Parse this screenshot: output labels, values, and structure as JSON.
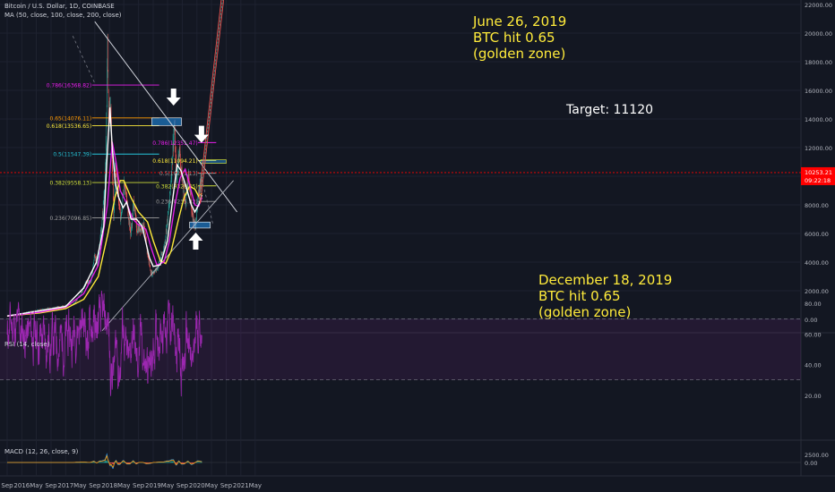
{
  "header": {
    "symbol": "Bitcoin / U.S. Dollar, 1D, COINBASE",
    "ma": "MA (50, close, 100, close, 200, close)",
    "rsi": "RSI (14, close)",
    "macd": "MACD (12, 26, close, 9)"
  },
  "colors": {
    "background": "#131722",
    "grid": "#1e2230",
    "candle_up": "#26a69a",
    "candle_down": "#ef5350",
    "ma50": "#ffffff",
    "ma100": "#e91eec",
    "ma200": "#ffeb3b",
    "rsi": "#9c27b0",
    "annotation_text": "#ffeb3b",
    "price_line": "#ff0000"
  },
  "chart_data": {
    "type": "line",
    "main": {
      "yticks": [
        0,
        2000,
        4000,
        6000,
        8000,
        10000,
        12000,
        14000,
        16000,
        18000,
        20000,
        22000
      ],
      "ytick_labels": [
        "0.00",
        "2000.00",
        "4000.00",
        "6000.00",
        "8000.00",
        "10000.00",
        "12000.00",
        "14000.00",
        "16000.00",
        "18000.00",
        "20000.00",
        "22000.00"
      ],
      "ylim": [
        -400,
        22000
      ],
      "current_price": "10253.21",
      "countdown": "09:22:18",
      "price_path": [
        [
          "2015-09-01",
          230
        ],
        [
          "2016-01-01",
          430
        ],
        [
          "2016-06-15",
          700
        ],
        [
          "2017-01-01",
          950
        ],
        [
          "2017-03-15",
          1100
        ],
        [
          "2017-05-01",
          1700
        ],
        [
          "2017-06-15",
          2500
        ],
        [
          "2017-08-01",
          2700
        ],
        [
          "2017-09-01",
          4600
        ],
        [
          "2017-09-20",
          3700
        ],
        [
          "2017-11-01",
          6800
        ],
        [
          "2017-12-01",
          10500
        ],
        [
          "2017-12-17",
          19500
        ],
        [
          "2017-12-25",
          14000
        ],
        [
          "2018-01-10",
          15000
        ],
        [
          "2018-02-06",
          7000
        ],
        [
          "2018-02-20",
          11000
        ],
        [
          "2018-04-05",
          6800
        ],
        [
          "2018-05-05",
          9700
        ],
        [
          "2018-06-28",
          5900
        ],
        [
          "2018-07-25",
          8300
        ],
        [
          "2018-08-15",
          6300
        ],
        [
          "2018-10-15",
          6500
        ],
        [
          "2018-11-20",
          4300
        ],
        [
          "2018-12-15",
          3200
        ],
        [
          "2019-02-01",
          3500
        ],
        [
          "2019-04-02",
          5000
        ],
        [
          "2019-05-15",
          8000
        ],
        [
          "2019-06-26",
          13500
        ],
        [
          "2019-07-15",
          9500
        ],
        [
          "2019-08-05",
          12000
        ],
        [
          "2019-09-01",
          9700
        ],
        [
          "2019-09-25",
          8100
        ],
        [
          "2019-10-26",
          10000
        ],
        [
          "2019-11-25",
          7000
        ],
        [
          "2019-12-18",
          6600
        ],
        [
          "2020-01-15",
          8800
        ],
        [
          "2020-02-12",
          10300
        ]
      ],
      "ma50": [
        [
          "2015-09-01",
          240
        ],
        [
          "2016-06-01",
          600
        ],
        [
          "2017-01-01",
          900
        ],
        [
          "2017-06-01",
          2200
        ],
        [
          "2017-09-15",
          4000
        ],
        [
          "2017-11-15",
          6500
        ],
        [
          "2017-12-10",
          11000
        ],
        [
          "2018-01-05",
          14800
        ],
        [
          "2018-01-25",
          12000
        ],
        [
          "2018-02-20",
          9500
        ],
        [
          "2018-03-20",
          8500
        ],
        [
          "2018-04-25",
          7800
        ],
        [
          "2018-05-25",
          8200
        ],
        [
          "2018-07-01",
          7000
        ],
        [
          "2018-08-15",
          7000
        ],
        [
          "2018-10-01",
          6500
        ],
        [
          "2018-12-01",
          4300
        ],
        [
          "2019-01-01",
          3700
        ],
        [
          "2019-03-01",
          3800
        ],
        [
          "2019-05-01",
          5500
        ],
        [
          "2019-06-15",
          8500
        ],
        [
          "2019-07-20",
          10800
        ],
        [
          "2019-08-20",
          10400
        ],
        [
          "2019-10-01",
          9300
        ],
        [
          "2019-11-15",
          8000
        ],
        [
          "2019-12-15",
          7500
        ],
        [
          "2020-01-15",
          8000
        ],
        [
          "2020-02-12",
          8700
        ]
      ],
      "ma100": [
        [
          "2015-09-01",
          230
        ],
        [
          "2016-06-01",
          500
        ],
        [
          "2017-01-01",
          850
        ],
        [
          "2017-06-01",
          1800
        ],
        [
          "2017-10-01",
          3800
        ],
        [
          "2017-12-15",
          8000
        ],
        [
          "2018-01-25",
          12400
        ],
        [
          "2018-02-25",
          11000
        ],
        [
          "2018-04-01",
          9000
        ],
        [
          "2018-06-01",
          8000
        ],
        [
          "2018-07-15",
          7000
        ],
        [
          "2018-09-01",
          6600
        ],
        [
          "2018-11-01",
          6300
        ],
        [
          "2018-12-15",
          5000
        ],
        [
          "2019-02-01",
          3800
        ],
        [
          "2019-04-01",
          4000
        ],
        [
          "2019-05-15",
          5400
        ],
        [
          "2019-07-01",
          8000
        ],
        [
          "2019-08-15",
          9900
        ],
        [
          "2019-09-25",
          10500
        ],
        [
          "2019-11-01",
          9400
        ],
        [
          "2019-12-15",
          8000
        ],
        [
          "2020-01-15",
          7900
        ],
        [
          "2020-02-12",
          8500
        ]
      ],
      "ma200": [
        [
          "2015-09-01",
          230
        ],
        [
          "2016-06-01",
          450
        ],
        [
          "2017-01-01",
          750
        ],
        [
          "2017-06-01",
          1400
        ],
        [
          "2017-10-01",
          3000
        ],
        [
          "2017-12-20",
          6000
        ],
        [
          "2018-02-15",
          8500
        ],
        [
          "2018-04-01",
          9700
        ],
        [
          "2018-05-01",
          9700
        ],
        [
          "2018-07-01",
          8500
        ],
        [
          "2018-09-01",
          7500
        ],
        [
          "2018-11-15",
          6800
        ],
        [
          "2019-01-01",
          5500
        ],
        [
          "2019-03-01",
          4100
        ],
        [
          "2019-04-15",
          3900
        ],
        [
          "2019-06-01",
          4800
        ],
        [
          "2019-08-01",
          7000
        ],
        [
          "2019-09-15",
          8500
        ],
        [
          "2019-11-01",
          9300
        ],
        [
          "2019-12-15",
          9100
        ],
        [
          "2020-01-15",
          8600
        ],
        [
          "2020-02-12",
          8800
        ]
      ],
      "fib_levels": [
        {
          "label": "0.786(16368.82)",
          "price": 16368.82,
          "color": "#e91eec"
        },
        {
          "label": "0.65(14076.11)",
          "price": 14076.11,
          "color": "#ff9800"
        },
        {
          "label": "0.618(13536.65)",
          "price": 13536.65,
          "color": "#ffeb3b"
        },
        {
          "label": "0.5(11547.39)",
          "price": 11547.39,
          "color": "#26c6da"
        },
        {
          "label": "0.382(9558.13)",
          "price": 9558.13,
          "color": "#cddc39"
        },
        {
          "label": "0.236(7096.85)",
          "price": 7096.85,
          "color": "#9e9e9e"
        }
      ],
      "fib_levels_2": [
        {
          "label": "0.786(12351.47)",
          "price": 12351.47,
          "color": "#e91eec"
        },
        {
          "label": "0.618(11094.21)",
          "price": 11094.21,
          "color": "#ffeb3b"
        },
        {
          "label": "0.5(10211.13)",
          "price": 10211.13,
          "color": "#9e9e9e"
        },
        {
          "label": "0.382(9328.05)",
          "price": 9328.05,
          "color": "#cddc39"
        },
        {
          "label": "0.236(8235.82)",
          "price": 8235.82,
          "color": "#9e9e9e"
        }
      ],
      "annotations": {
        "june_line1": "June 26, 2019",
        "june_line2": "BTC hit 0.65",
        "june_line3": "(golden zone)",
        "target": "Target: 11120",
        "dec_line1": "December 18, 2019",
        "dec_line2": "BTC hit 0.65",
        "dec_line3": "(golden zone)"
      }
    },
    "rsi": {
      "yticks": [
        20,
        40,
        60,
        80
      ],
      "ytick_labels": [
        "20.00",
        "40.00",
        "60.00",
        "80.00"
      ],
      "ylim": [
        10,
        95
      ],
      "band": [
        30,
        70
      ]
    },
    "macd": {
      "yticks": [
        0,
        2500
      ],
      "ytick_labels": [
        "0.00",
        "2500.00"
      ]
    },
    "xticks": [
      {
        "date": "2015-09-01",
        "label": "Sep"
      },
      {
        "date": "2016-01-01",
        "label": "2016"
      },
      {
        "date": "2016-05-01",
        "label": "May"
      },
      {
        "date": "2016-09-01",
        "label": "Sep"
      },
      {
        "date": "2017-01-01",
        "label": "2017"
      },
      {
        "date": "2017-05-01",
        "label": "May"
      },
      {
        "date": "2017-09-01",
        "label": "Sep"
      },
      {
        "date": "2018-01-01",
        "label": "2018"
      },
      {
        "date": "2018-05-01",
        "label": "May"
      },
      {
        "date": "2018-09-01",
        "label": "Sep"
      },
      {
        "date": "2019-01-01",
        "label": "2019"
      },
      {
        "date": "2019-05-01",
        "label": "May"
      },
      {
        "date": "2019-09-01",
        "label": "Sep"
      },
      {
        "date": "2020-01-01",
        "label": "2020"
      },
      {
        "date": "2020-05-01",
        "label": "May"
      },
      {
        "date": "2020-09-01",
        "label": "Sep"
      },
      {
        "date": "2021-01-01",
        "label": "2021"
      },
      {
        "date": "2021-05-01",
        "label": "May"
      }
    ]
  }
}
